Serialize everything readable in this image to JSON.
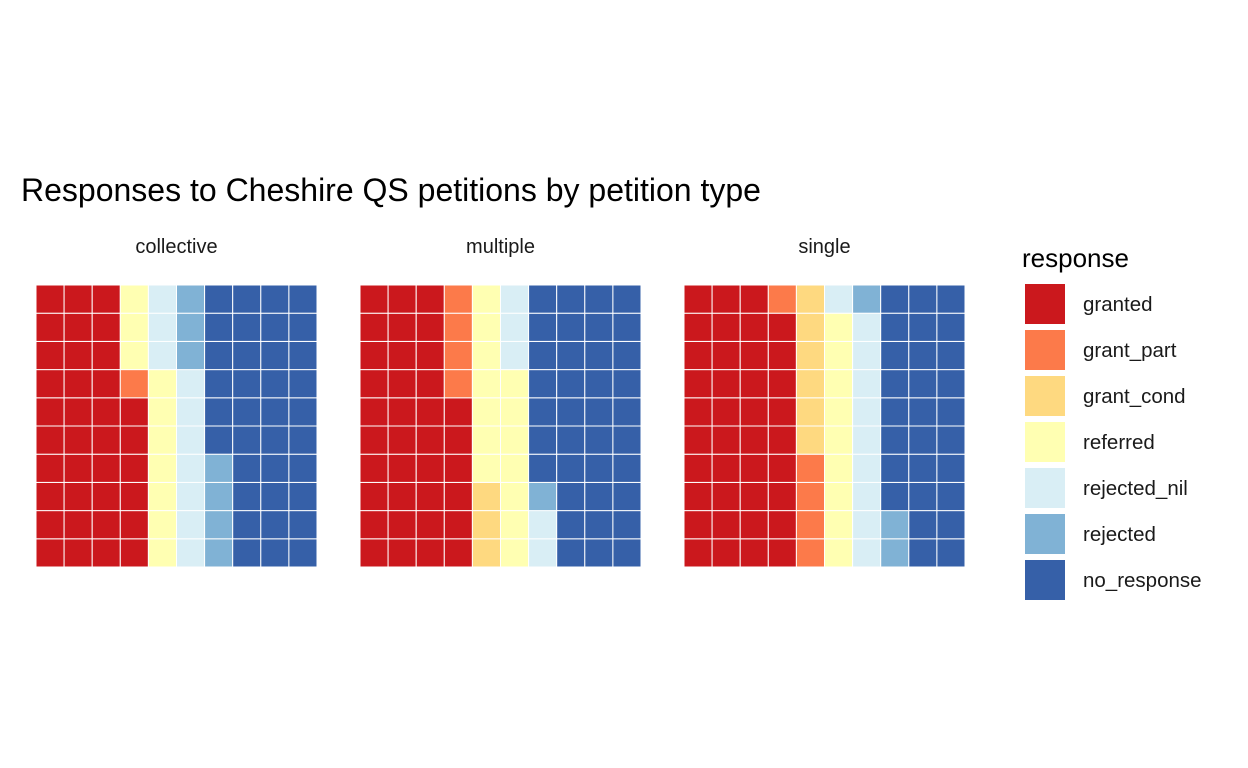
{
  "chart_data": {
    "type": "heatmap",
    "subtype": "waffle",
    "title": "Responses to Cheshire QS petitions by petition type",
    "legend": {
      "title": "response",
      "position": "right",
      "entries": [
        {
          "label": "granted",
          "color": "#CB181D"
        },
        {
          "label": "grant_part",
          "color": "#FC7A4A"
        },
        {
          "label": "grant_cond",
          "color": "#FED980"
        },
        {
          "label": "referred",
          "color": "#FFFFB2"
        },
        {
          "label": "rejected_nil",
          "color": "#D9EEF5"
        },
        {
          "label": "rejected",
          "color": "#80B2D5"
        },
        {
          "label": "no_response",
          "color": "#3660A8"
        }
      ]
    },
    "grid": {
      "rows": 10,
      "cols": 10,
      "fill_order": "column-wise from bottom-left",
      "cell_border": "#ffffff"
    },
    "panels": [
      {
        "label": "collective",
        "counts": {
          "granted": 36,
          "grant_part": 1,
          "grant_cond": 0,
          "referred": 10,
          "rejected_nil": 10,
          "rejected": 7,
          "no_response": 36
        }
      },
      {
        "label": "multiple",
        "counts": {
          "granted": 36,
          "grant_part": 4,
          "grant_cond": 3,
          "referred": 14,
          "rejected_nil": 5,
          "rejected": 1,
          "no_response": 37
        }
      },
      {
        "label": "single",
        "counts": {
          "granted": 39,
          "grant_part": 5,
          "grant_cond": 6,
          "referred": 9,
          "rejected_nil": 10,
          "rejected": 3,
          "no_response": 28
        }
      }
    ]
  }
}
